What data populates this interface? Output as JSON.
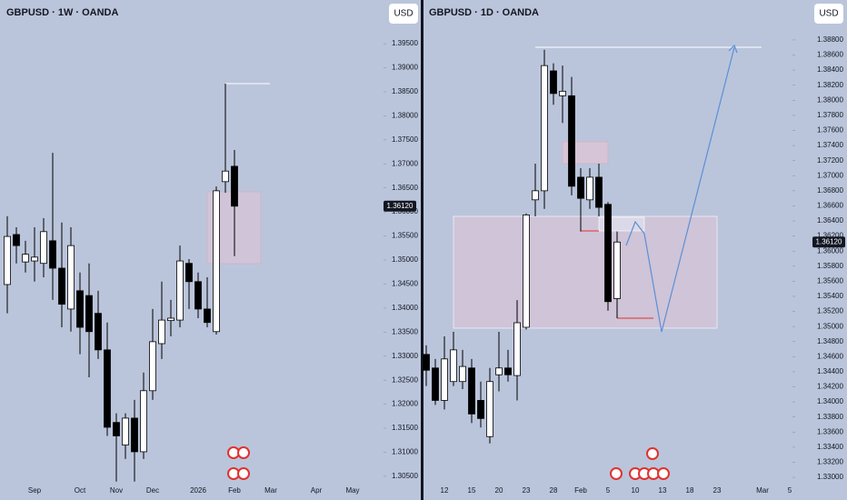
{
  "chart_data": [
    {
      "type": "candlestick",
      "title": "GBPUSD · 1W · OANDA",
      "currency": "USD",
      "categories": [
        null,
        null,
        null,
        "Sep",
        null,
        null,
        null,
        null,
        "Oct",
        null,
        null,
        null,
        "Nov",
        null,
        null,
        null,
        "Dec",
        null,
        null,
        null,
        null,
        "2026",
        null,
        null,
        null,
        "Feb",
        null,
        null,
        null,
        "Mar",
        null,
        null,
        null,
        null,
        "Apr",
        null,
        null,
        null,
        "May",
        null,
        null,
        null
      ],
      "open": [
        1.3449,
        1.3553,
        1.3496,
        1.3498,
        1.3493,
        1.354,
        1.3483,
        1.3398,
        1.3436,
        1.3426,
        1.3389,
        1.3313,
        1.3162,
        1.3115,
        1.3171,
        1.3101,
        1.3228,
        1.3326,
        1.3374,
        1.3375,
        1.3493,
        1.3455,
        1.3398,
        1.3351,
        1.3663,
        1.3695,
        null,
        null,
        null,
        null,
        null,
        null,
        null,
        null,
        null,
        null,
        null,
        null,
        null,
        null,
        null,
        null
      ],
      "high": [
        1.3591,
        1.3568,
        1.354,
        1.3568,
        1.3587,
        1.3723,
        1.3578,
        1.3568,
        1.3474,
        1.3493,
        1.3436,
        1.337,
        1.3181,
        1.3181,
        1.3209,
        1.3266,
        1.3398,
        1.3455,
        1.3417,
        1.353,
        1.3502,
        1.3474,
        1.3464,
        1.3653,
        1.3867,
        1.3729,
        null,
        null,
        null,
        null,
        null,
        null,
        null,
        null,
        null,
        null,
        null,
        null,
        null,
        null,
        null,
        null
      ],
      "low": [
        1.3389,
        1.3493,
        1.3474,
        1.3455,
        1.3464,
        1.3417,
        1.336,
        1.3351,
        1.3304,
        1.3256,
        1.3294,
        1.3134,
        1.3039,
        1.3086,
        1.3039,
        1.3086,
        1.3209,
        1.3294,
        1.3341,
        1.336,
        1.3398,
        1.3379,
        1.336,
        1.3345,
        1.364,
        1.3508,
        null,
        null,
        null,
        null,
        null,
        null,
        null,
        null,
        null,
        null,
        null,
        null,
        null,
        null,
        null,
        null
      ],
      "close": [
        1.3549,
        1.353,
        1.3512,
        1.3506,
        1.3559,
        1.3483,
        1.3408,
        1.353,
        1.336,
        1.3351,
        1.3313,
        1.3152,
        1.3134,
        1.3171,
        1.3101,
        1.3228,
        1.333,
        1.3375,
        1.3379,
        1.3498,
        1.3455,
        1.3398,
        1.337,
        1.3644,
        1.3685,
        1.3612,
        null,
        null,
        null,
        null,
        null,
        null,
        null,
        null,
        null,
        null,
        null,
        null,
        null,
        null,
        null,
        null
      ],
      "up_color": "#ffffff",
      "down_color": "#000000",
      "ylim": [
        1.3029,
        1.4041
      ],
      "yticks": [
        {
          "value": 1.305,
          "label": "1.30500"
        },
        {
          "value": 1.31,
          "label": "1.31000"
        },
        {
          "value": 1.315,
          "label": "1.31500"
        },
        {
          "value": 1.32,
          "label": "1.32000"
        },
        {
          "value": 1.325,
          "label": "1.32500"
        },
        {
          "value": 1.33,
          "label": "1.33000"
        },
        {
          "value": 1.335,
          "label": "1.33500"
        },
        {
          "value": 1.34,
          "label": "1.34000"
        },
        {
          "value": 1.345,
          "label": "1.34500"
        },
        {
          "value": 1.35,
          "label": "1.35000"
        },
        {
          "value": 1.355,
          "label": "1.35500"
        },
        {
          "value": 1.36,
          "label": "1.36000"
        },
        {
          "value": 1.365,
          "label": "1.36500"
        },
        {
          "value": 1.37,
          "label": "1.37000"
        },
        {
          "value": 1.375,
          "label": "1.37500"
        },
        {
          "value": 1.38,
          "label": "1.38000"
        },
        {
          "value": 1.385,
          "label": "1.38500"
        },
        {
          "value": 1.39,
          "label": "1.39000"
        },
        {
          "value": 1.395,
          "label": "1.39500"
        }
      ],
      "last_price": {
        "value": 1.3612,
        "label": "1.36120"
      }
    },
    {
      "type": "candlestick",
      "title": "GBPUSD · 1D · OANDA",
      "currency": "USD",
      "categories": [
        null,
        null,
        "12",
        null,
        null,
        "15",
        null,
        null,
        "20",
        null,
        null,
        "23",
        null,
        null,
        "28",
        null,
        null,
        "Feb",
        null,
        null,
        "5",
        null,
        null,
        "10",
        null,
        null,
        "13",
        null,
        null,
        "18",
        null,
        null,
        "23",
        null,
        null,
        null,
        null,
        "Mar",
        null,
        null,
        "5"
      ],
      "open": [
        1.3463,
        1.3445,
        1.3402,
        1.3427,
        1.3427,
        1.3445,
        1.3402,
        1.3354,
        1.3436,
        1.3445,
        1.3435,
        1.3499,
        1.3668,
        1.368,
        1.3839,
        1.3806,
        1.3806,
        1.3698,
        1.3668,
        1.3698,
        1.3662,
        1.3537,
        null,
        null,
        null,
        null,
        null,
        null,
        null,
        null,
        null,
        null,
        null,
        null,
        null,
        null,
        null,
        null,
        null,
        null,
        null
      ],
      "high": [
        1.3475,
        1.3457,
        1.3487,
        1.3493,
        1.3469,
        1.3457,
        1.3427,
        1.3445,
        1.3493,
        1.3469,
        1.3535,
        1.365,
        1.3716,
        1.3867,
        1.3849,
        1.3846,
        1.3831,
        1.371,
        1.371,
        1.3716,
        1.3665,
        1.3626,
        null,
        null,
        null,
        null,
        null,
        null,
        null,
        null,
        null,
        null,
        null,
        null,
        null,
        null,
        null,
        null,
        null,
        null,
        null
      ],
      "low": [
        1.3421,
        1.3396,
        1.339,
        1.3421,
        1.3417,
        1.3372,
        1.3366,
        1.3345,
        1.3414,
        1.3427,
        1.3402,
        1.3496,
        1.3646,
        1.3656,
        1.3794,
        1.377,
        1.3674,
        1.3626,
        1.3656,
        1.3646,
        1.3521,
        1.3511,
        null,
        null,
        null,
        null,
        null,
        null,
        null,
        null,
        null,
        null,
        null,
        null,
        null,
        null,
        null,
        null,
        null,
        null,
        null
      ],
      "close": [
        1.3442,
        1.3402,
        1.3457,
        1.3469,
        1.3447,
        1.3384,
        1.3378,
        1.3427,
        1.3445,
        1.3436,
        1.3505,
        1.3648,
        1.368,
        1.3846,
        1.3809,
        1.3812,
        1.3686,
        1.367,
        1.3698,
        1.3658,
        1.3533,
        1.3612,
        null,
        null,
        null,
        null,
        null,
        null,
        null,
        null,
        null,
        null,
        null,
        null,
        null,
        null,
        null,
        null,
        null,
        null,
        null
      ],
      "up_color": "#ffffff",
      "down_color": "#000000",
      "ylim": [
        1.3288,
        1.3933
      ],
      "yticks": [
        {
          "value": 1.33,
          "label": "1.33000"
        },
        {
          "value": 1.332,
          "label": "1.33200"
        },
        {
          "value": 1.334,
          "label": "1.33400"
        },
        {
          "value": 1.336,
          "label": "1.33600"
        },
        {
          "value": 1.338,
          "label": "1.33800"
        },
        {
          "value": 1.34,
          "label": "1.34000"
        },
        {
          "value": 1.342,
          "label": "1.34200"
        },
        {
          "value": 1.344,
          "label": "1.34400"
        },
        {
          "value": 1.346,
          "label": "1.34600"
        },
        {
          "value": 1.348,
          "label": "1.34800"
        },
        {
          "value": 1.35,
          "label": "1.35000"
        },
        {
          "value": 1.352,
          "label": "1.35200"
        },
        {
          "value": 1.354,
          "label": "1.35400"
        },
        {
          "value": 1.356,
          "label": "1.35600"
        },
        {
          "value": 1.358,
          "label": "1.35800"
        },
        {
          "value": 1.36,
          "label": "1.36000"
        },
        {
          "value": 1.362,
          "label": "1.36200"
        },
        {
          "value": 1.364,
          "label": "1.36400"
        },
        {
          "value": 1.366,
          "label": "1.36600"
        },
        {
          "value": 1.368,
          "label": "1.36800"
        },
        {
          "value": 1.37,
          "label": "1.37000"
        },
        {
          "value": 1.372,
          "label": "1.37200"
        },
        {
          "value": 1.374,
          "label": "1.37400"
        },
        {
          "value": 1.376,
          "label": "1.37600"
        },
        {
          "value": 1.378,
          "label": "1.37800"
        },
        {
          "value": 1.38,
          "label": "1.38000"
        },
        {
          "value": 1.382,
          "label": "1.38200"
        },
        {
          "value": 1.384,
          "label": "1.38400"
        },
        {
          "value": 1.386,
          "label": "1.38600"
        },
        {
          "value": 1.388,
          "label": "1.38800"
        }
      ],
      "last_price": {
        "value": 1.3612,
        "label": "1.36120"
      }
    }
  ]
}
